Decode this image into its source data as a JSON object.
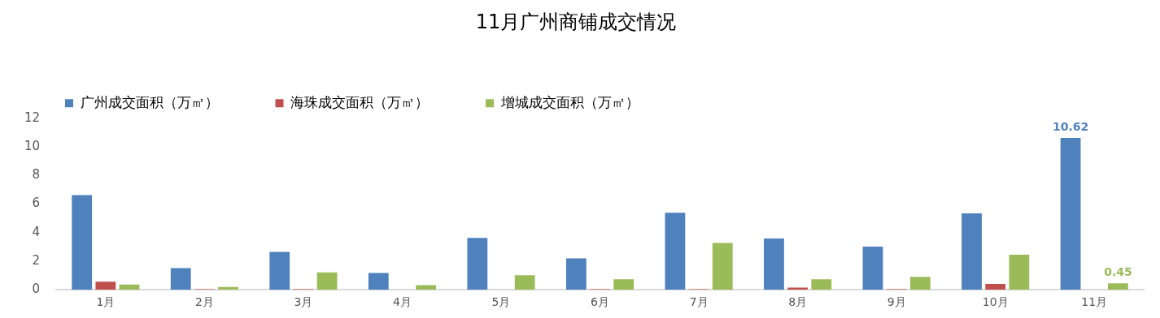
{
  "chart_data": {
    "type": "bar",
    "title": "11月广州商铺成交情况",
    "categories": [
      "1月",
      "2月",
      "3月",
      "4月",
      "5月",
      "6月",
      "7月",
      "8月",
      "9月",
      "10月",
      "11月"
    ],
    "series": [
      {
        "name": "广州成交面积（万㎡）",
        "color": "#4f81bd",
        "values": [
          6.63,
          1.51,
          2.65,
          1.18,
          3.63,
          2.2,
          5.39,
          3.59,
          3.02,
          5.35,
          10.62
        ],
        "value_labels": [
          null,
          null,
          null,
          null,
          null,
          null,
          null,
          null,
          null,
          null,
          "10.62"
        ]
      },
      {
        "name": "海珠成交面积（万㎡）",
        "color": "#c0504d",
        "values": [
          0.57,
          0.04,
          0.04,
          0,
          0,
          0.04,
          0.04,
          0.16,
          0.04,
          0.41,
          0
        ]
      },
      {
        "name": "增城成交面积（万㎡）",
        "color": "#9bbb59",
        "values": [
          0.37,
          0.2,
          1.22,
          0.33,
          1.02,
          0.73,
          3.27,
          0.73,
          0.9,
          2.45,
          0.45
        ],
        "value_labels": [
          null,
          null,
          null,
          null,
          null,
          null,
          null,
          null,
          null,
          null,
          "0.45"
        ]
      }
    ],
    "ylim": [
      0,
      12
    ],
    "yticks": [
      0,
      2,
      4,
      6,
      8,
      10,
      12
    ],
    "grid": false,
    "legend": "top left"
  }
}
